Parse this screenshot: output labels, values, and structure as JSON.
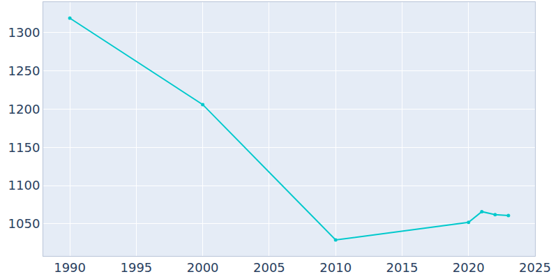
{
  "chart_data": {
    "type": "line",
    "x": [
      1990,
      2000,
      2010,
      2020,
      2021,
      2022,
      2023
    ],
    "values": [
      1319,
      1206,
      1029,
      1052,
      1066,
      1062,
      1061
    ],
    "color": "#00c9cc",
    "marker": "circle",
    "xlim": [
      1988,
      2025
    ],
    "ylim": [
      1008,
      1340
    ],
    "xticks": [
      1990,
      1995,
      2000,
      2005,
      2010,
      2015,
      2020,
      2025
    ],
    "yticks": [
      1050,
      1100,
      1150,
      1200,
      1250,
      1300
    ],
    "grid": true
  }
}
